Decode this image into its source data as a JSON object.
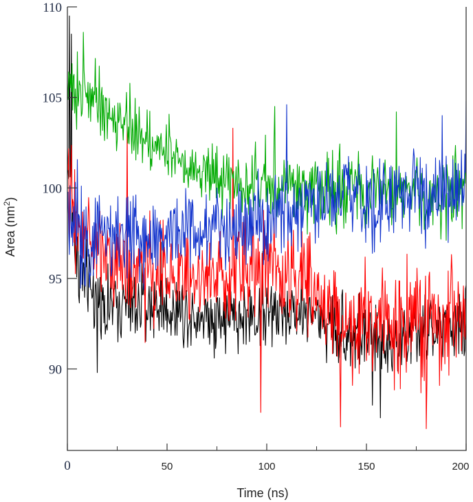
{
  "chart_data": {
    "type": "line",
    "xlabel": "Time (ns)",
    "ylabel": {
      "main": "Area (nm",
      "sup": "2",
      "close": ")"
    },
    "xlim": [
      0,
      200
    ],
    "ylim": [
      85.5,
      110
    ],
    "x_ticks": [
      0,
      50,
      100,
      150,
      200
    ],
    "y_ticks": [
      90,
      95,
      100,
      105,
      110
    ],
    "grid": false,
    "series": [
      {
        "color": "#000000",
        "points_per_ns": 3,
        "mean": [
          [
            0,
            102
          ],
          [
            2,
            99
          ],
          [
            5,
            96
          ],
          [
            10,
            94.5
          ],
          [
            20,
            93.5
          ],
          [
            40,
            93.5
          ],
          [
            60,
            93.2
          ],
          [
            80,
            92.8
          ],
          [
            100,
            93
          ],
          [
            120,
            93.2
          ],
          [
            140,
            92
          ],
          [
            160,
            91.5
          ],
          [
            180,
            92
          ],
          [
            200,
            92.5
          ]
        ],
        "band": [
          [
            0,
            3
          ],
          [
            20,
            2.5
          ],
          [
            100,
            2.5
          ],
          [
            200,
            2.5
          ]
        ],
        "spikes": [
          [
            1,
            109.5
          ],
          [
            2,
            108.5
          ],
          [
            15,
            89.8
          ],
          [
            47,
            97
          ],
          [
            98,
            96.5
          ],
          [
            153,
            88
          ],
          [
            157,
            87.3
          ]
        ]
      },
      {
        "color": "#ff0000",
        "points_per_ns": 3,
        "mean": [
          [
            0,
            100
          ],
          [
            10,
            97
          ],
          [
            30,
            95.5
          ],
          [
            60,
            95
          ],
          [
            90,
            95.5
          ],
          [
            100,
            96
          ],
          [
            120,
            95
          ],
          [
            140,
            92.5
          ],
          [
            160,
            92.5
          ],
          [
            180,
            92.5
          ],
          [
            200,
            93
          ]
        ],
        "band": [
          [
            0,
            3.5
          ],
          [
            50,
            3
          ],
          [
            120,
            3.5
          ],
          [
            140,
            4
          ],
          [
            200,
            4
          ]
        ],
        "spikes": [
          [
            83,
            103.3
          ],
          [
            97,
            87.6
          ],
          [
            137,
            86.8
          ],
          [
            180,
            86.7
          ],
          [
            30,
            103.5
          ]
        ]
      },
      {
        "color": "#00aa00",
        "points_per_ns": 3,
        "mean": [
          [
            0,
            105.5
          ],
          [
            10,
            105.2
          ],
          [
            20,
            104
          ],
          [
            40,
            102.8
          ],
          [
            60,
            101.5
          ],
          [
            80,
            100.5
          ],
          [
            100,
            100.2
          ],
          [
            120,
            100
          ],
          [
            140,
            100
          ],
          [
            160,
            99.8
          ],
          [
            180,
            99.5
          ],
          [
            200,
            99.8
          ]
        ],
        "band": [
          [
            0,
            2.2
          ],
          [
            50,
            2.2
          ],
          [
            100,
            2.5
          ],
          [
            200,
            2.5
          ]
        ],
        "spikes": [
          [
            8,
            108.6
          ],
          [
            104,
            104.5
          ],
          [
            165,
            104.2
          ]
        ]
      },
      {
        "color": "#1133cc",
        "points_per_ns": 3,
        "mean": [
          [
            0,
            99
          ],
          [
            10,
            97.5
          ],
          [
            30,
            97.5
          ],
          [
            60,
            97.5
          ],
          [
            100,
            98
          ],
          [
            130,
            99
          ],
          [
            160,
            99.5
          ],
          [
            200,
            99.8
          ]
        ],
        "band": [
          [
            0,
            3.5
          ],
          [
            60,
            3
          ],
          [
            120,
            3
          ],
          [
            200,
            3.2
          ]
        ],
        "spikes": [
          [
            110,
            104.6
          ],
          [
            200,
            104.8
          ],
          [
            188,
            104
          ]
        ]
      }
    ]
  }
}
